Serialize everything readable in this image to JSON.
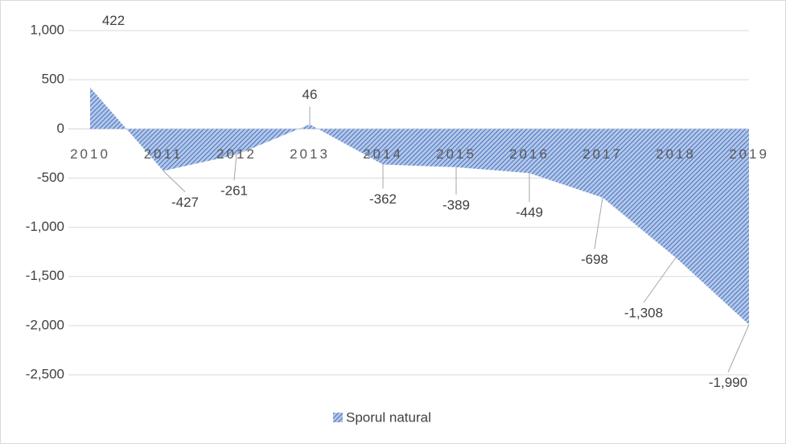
{
  "chart_data": {
    "type": "area",
    "categories": [
      "2010",
      "2011",
      "2012",
      "2013",
      "2014",
      "2015",
      "2016",
      "2017",
      "2018",
      "2019"
    ],
    "series": [
      {
        "name": "Sporul natural",
        "color": "#4472c4",
        "values": [
          422,
          -427,
          -261,
          46,
          -362,
          -389,
          -449,
          -698,
          -1308,
          -1990
        ],
        "value_labels": [
          "422",
          "-427",
          "-261",
          "46",
          "-362",
          "-389",
          "-449",
          "-698",
          "-1,308",
          "-1,990"
        ]
      }
    ],
    "ylim": [
      -2500,
      1000
    ],
    "yticks": [
      {
        "value": 1000,
        "label": "1,000"
      },
      500,
      0,
      -500,
      {
        "value": -1000,
        "label": "-1,000"
      },
      {
        "value": -1500,
        "label": "-1,500"
      },
      {
        "value": -2000,
        "label": "-2,000"
      },
      {
        "value": -2500,
        "label": "-2,500"
      }
    ],
    "grid": true,
    "legend": "bottom"
  }
}
